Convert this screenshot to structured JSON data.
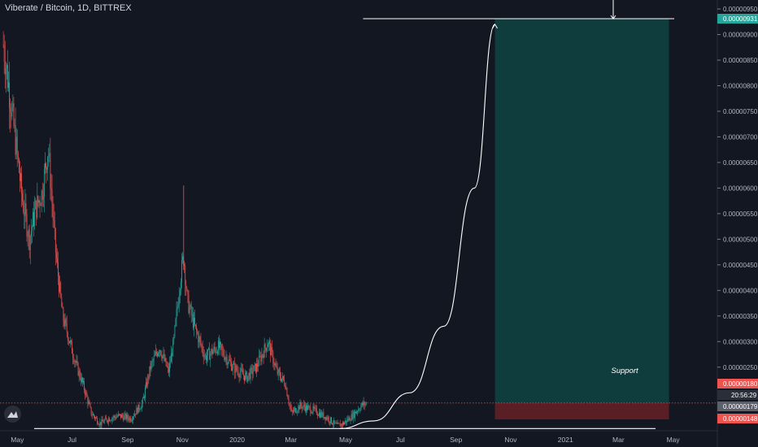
{
  "header": {
    "symbol_title": "Viberate / Bitcoin, 1D, BITTREX"
  },
  "countdown": "20:56:29",
  "colors": {
    "background": "#131722",
    "up": "#26a69a",
    "down": "#ef5350",
    "target_zone": "#0f3c3c",
    "stop_zone": "#5a1e25",
    "drawing": "#ffffff",
    "axis_text": "#b2b5be"
  },
  "chart_data": {
    "type": "candlestick",
    "title": "Viberate / Bitcoin",
    "timeframe": "1D",
    "exchange": "BITTREX",
    "x_ticks": [
      "May",
      "Jul",
      "Sep",
      "Nov",
      "2020",
      "Mar",
      "May",
      "Jul",
      "Sep",
      "Nov",
      "2021",
      "Mar",
      "May"
    ],
    "y_ticks": [
      "0.00000950",
      "0.00000900",
      "0.00000850",
      "0.00000800",
      "0.00000750",
      "0.00000700",
      "0.00000650",
      "0.00000600",
      "0.00000550",
      "0.00000500",
      "0.00000450",
      "0.00000400",
      "0.00000350",
      "0.00000300",
      "0.00000250",
      "0.00000200",
      "0.00000150"
    ],
    "y_range": [
      5e-07,
      9.75e-06
    ],
    "price_labels": [
      {
        "value": 9.31e-06,
        "label": "0.00000931",
        "color": "#26a69a"
      },
      {
        "value": 1.8e-06,
        "label": "0.00000180",
        "color": "#ef5350"
      },
      {
        "value": 1.79e-06,
        "label": "0.00000179",
        "color": "#5d606b"
      },
      {
        "value": 1.48e-06,
        "label": "0.00000148",
        "color": "#ef5350"
      }
    ],
    "support_level": 1.3e-06,
    "target_level": 9.31e-06,
    "entry_level": 1.8e-06,
    "stop_level": 1.48e-06,
    "annotation": "Support",
    "price_path": [
      [
        "2019-04-29",
        8.8e-06
      ],
      [
        "2019-05-05",
        8e-06
      ],
      [
        "2019-05-12",
        7e-06
      ],
      [
        "2019-05-20",
        5.8e-06
      ],
      [
        "2019-05-28",
        5e-06
      ],
      [
        "2019-06-04",
        5.6e-06
      ],
      [
        "2019-06-11",
        5.9e-06
      ],
      [
        "2019-06-18",
        6.8e-06
      ],
      [
        "2019-06-26",
        4.8e-06
      ],
      [
        "2019-07-04",
        3.5e-06
      ],
      [
        "2019-07-12",
        3e-06
      ],
      [
        "2019-07-20",
        2.5e-06
      ],
      [
        "2019-07-28",
        2.1e-06
      ],
      [
        "2019-08-05",
        1.6e-06
      ],
      [
        "2019-08-15",
        1.4e-06
      ],
      [
        "2019-08-25",
        1.5e-06
      ],
      [
        "2019-09-05",
        1.55e-06
      ],
      [
        "2019-09-18",
        1.5e-06
      ],
      [
        "2019-10-01",
        1.8e-06
      ],
      [
        "2019-10-10",
        2.5e-06
      ],
      [
        "2019-10-20",
        2.9e-06
      ],
      [
        "2019-10-30",
        2.4e-06
      ],
      [
        "2019-11-05",
        3e-06
      ],
      [
        "2019-11-12",
        4.2e-06
      ],
      [
        "2019-11-16",
        4.7e-06
      ],
      [
        "2019-11-20",
        3.8e-06
      ],
      [
        "2019-11-28",
        3.3e-06
      ],
      [
        "2019-12-10",
        2.7e-06
      ],
      [
        "2019-12-25",
        2.9e-06
      ],
      [
        "2020-01-10",
        2.5e-06
      ],
      [
        "2020-01-25",
        2.3e-06
      ],
      [
        "2020-02-05",
        2.5e-06
      ],
      [
        "2020-02-18",
        3e-06
      ],
      [
        "2020-02-28",
        2.4e-06
      ],
      [
        "2020-03-08",
        2.2e-06
      ],
      [
        "2020-03-15",
        1.6e-06
      ],
      [
        "2020-03-25",
        1.75e-06
      ],
      [
        "2020-04-10",
        1.65e-06
      ],
      [
        "2020-04-25",
        1.5e-06
      ],
      [
        "2020-05-05",
        1.35e-06
      ],
      [
        "2020-05-12",
        1.4e-06
      ],
      [
        "2020-05-22",
        1.55e-06
      ],
      [
        "2020-06-01",
        1.75e-06
      ],
      [
        "2020-06-07",
        1.8e-06
      ]
    ],
    "projection_curve": [
      [
        "2020-05-08",
        1.3e-06
      ],
      [
        "2020-06-15",
        1.45e-06
      ],
      [
        "2020-07-25",
        2e-06
      ],
      [
        "2020-09-01",
        3.3e-06
      ],
      [
        "2020-10-05",
        6e-06
      ],
      [
        "2020-10-28",
        9.2e-06
      ]
    ],
    "support_line": {
      "x0": "2019-06-12",
      "x1": "2021-04-25",
      "y": 1.3e-06
    },
    "target_line": {
      "x0": "2020-06-03",
      "x1": "2021-04-25",
      "y": 9.31e-06
    },
    "target_zone": {
      "x0": "2020-10-28",
      "x1": "2021-05-10",
      "y0": 1.8e-06,
      "y1": 9.31e-06
    },
    "stop_zone": {
      "x0": "2020-10-28",
      "x1": "2021-05-10",
      "y0": 1.48e-06,
      "y1": 1.8e-06
    }
  }
}
